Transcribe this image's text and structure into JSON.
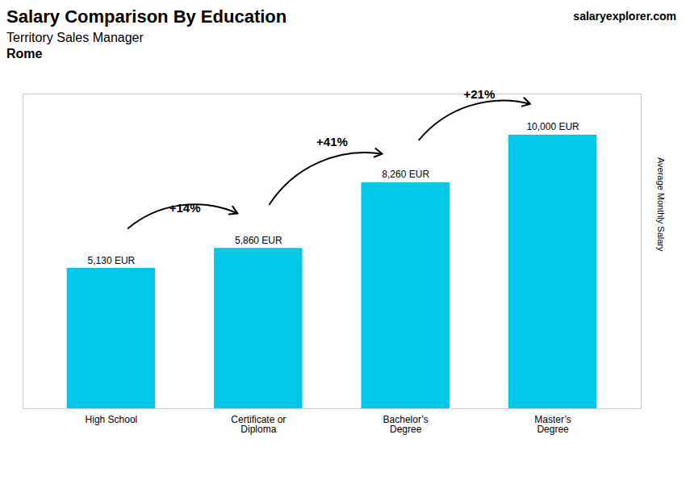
{
  "chart_data": {
    "type": "bar",
    "title": "Salary Comparison By Education",
    "subtitle": "Territory Sales Manager",
    "y_label": "Average Monthly Salary",
    "categories": [
      "High School",
      "Certificate or\nDiploma",
      "Bachelor’s\nDegree",
      "Master’s\nDegree"
    ],
    "values": [
      5130,
      5860,
      8260,
      10000
    ],
    "value_labels": [
      "5,130 EUR",
      "5,860 EUR",
      "8,260 EUR",
      "10,000 EUR"
    ],
    "data_labels": true,
    "color": "#00c8e8",
    "ylim": [
      0,
      11500
    ],
    "grid": false,
    "tick_labels": "x",
    "annotations": [
      {
        "text": "Rome"
      },
      {
        "text": "salaryexplorer.com"
      },
      {
        "text": "+14%",
        "from": "High School",
        "to": "Certificate or\nDiploma"
      },
      {
        "text": "+41%",
        "from": "Certificate or\nDiploma",
        "to": "Bachelor’s\nDegree"
      },
      {
        "text": "+21%",
        "from": "Bachelor’s\nDegree",
        "to": "Master’s\nDegree"
      }
    ]
  }
}
